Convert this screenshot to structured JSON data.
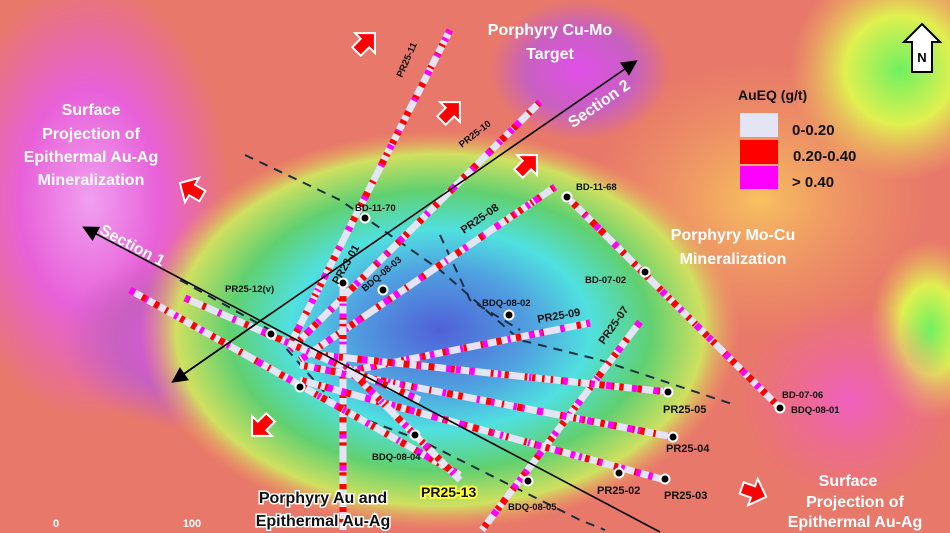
{
  "labels": {
    "target_top": [
      "Porphyry Cu-Mo",
      "Target"
    ],
    "surface_left": [
      "Surface",
      "Projection of",
      "Epithermal Au-Ag",
      "Mineralization"
    ],
    "mocu": [
      "Porphyry Mo-Cu",
      "Mineralization"
    ],
    "surface_right": [
      "Surface",
      "Projection of",
      "Epithermal Au-Ag"
    ],
    "au_bottom": [
      "Porphyry  Au and",
      "Epithermal Au-Ag"
    ],
    "section1": "Section 1",
    "section2": "Section 2",
    "north": "N",
    "scale": [
      "0",
      "100"
    ]
  },
  "legend": {
    "title": "AuEQ (g/t)",
    "items": [
      {
        "label": "0-0.20",
        "color": "#e4e4f4"
      },
      {
        "label": "0.20-0.40",
        "color": "#ff0000"
      },
      {
        "label": "> 0.40",
        "color": "#ff00ff"
      }
    ]
  },
  "drillholes": {
    "PR25-11": "PR25-11",
    "PR25-10": "PR25-10",
    "PR25-08": "PR25-08",
    "PR25-09": "PR25-09",
    "PR25-07": "PR25-07",
    "PR25-05": "PR25-05",
    "PR25-04": "PR25-04",
    "PR25-03": "PR25-03",
    "PR25-02": "PR25-02",
    "PR25-12": "PR25-12(v)",
    "PR25-13": "PR25-13",
    "PR23-01": "PR23-01",
    "BD-11-70": "BD-11-70",
    "BD-11-68": "BD-11-68",
    "BD-07-02": "BD-07-02",
    "BD-07-06": "BD-07-06",
    "BDQ-08-01": "BDQ-08-01",
    "BDQ-08-02": "BDQ-08-02",
    "BDQ-08-03": "BDQ-08-03",
    "BDQ-08-04": "BDQ-08-04",
    "BDQ-08-05": "BDQ-08-05"
  }
}
